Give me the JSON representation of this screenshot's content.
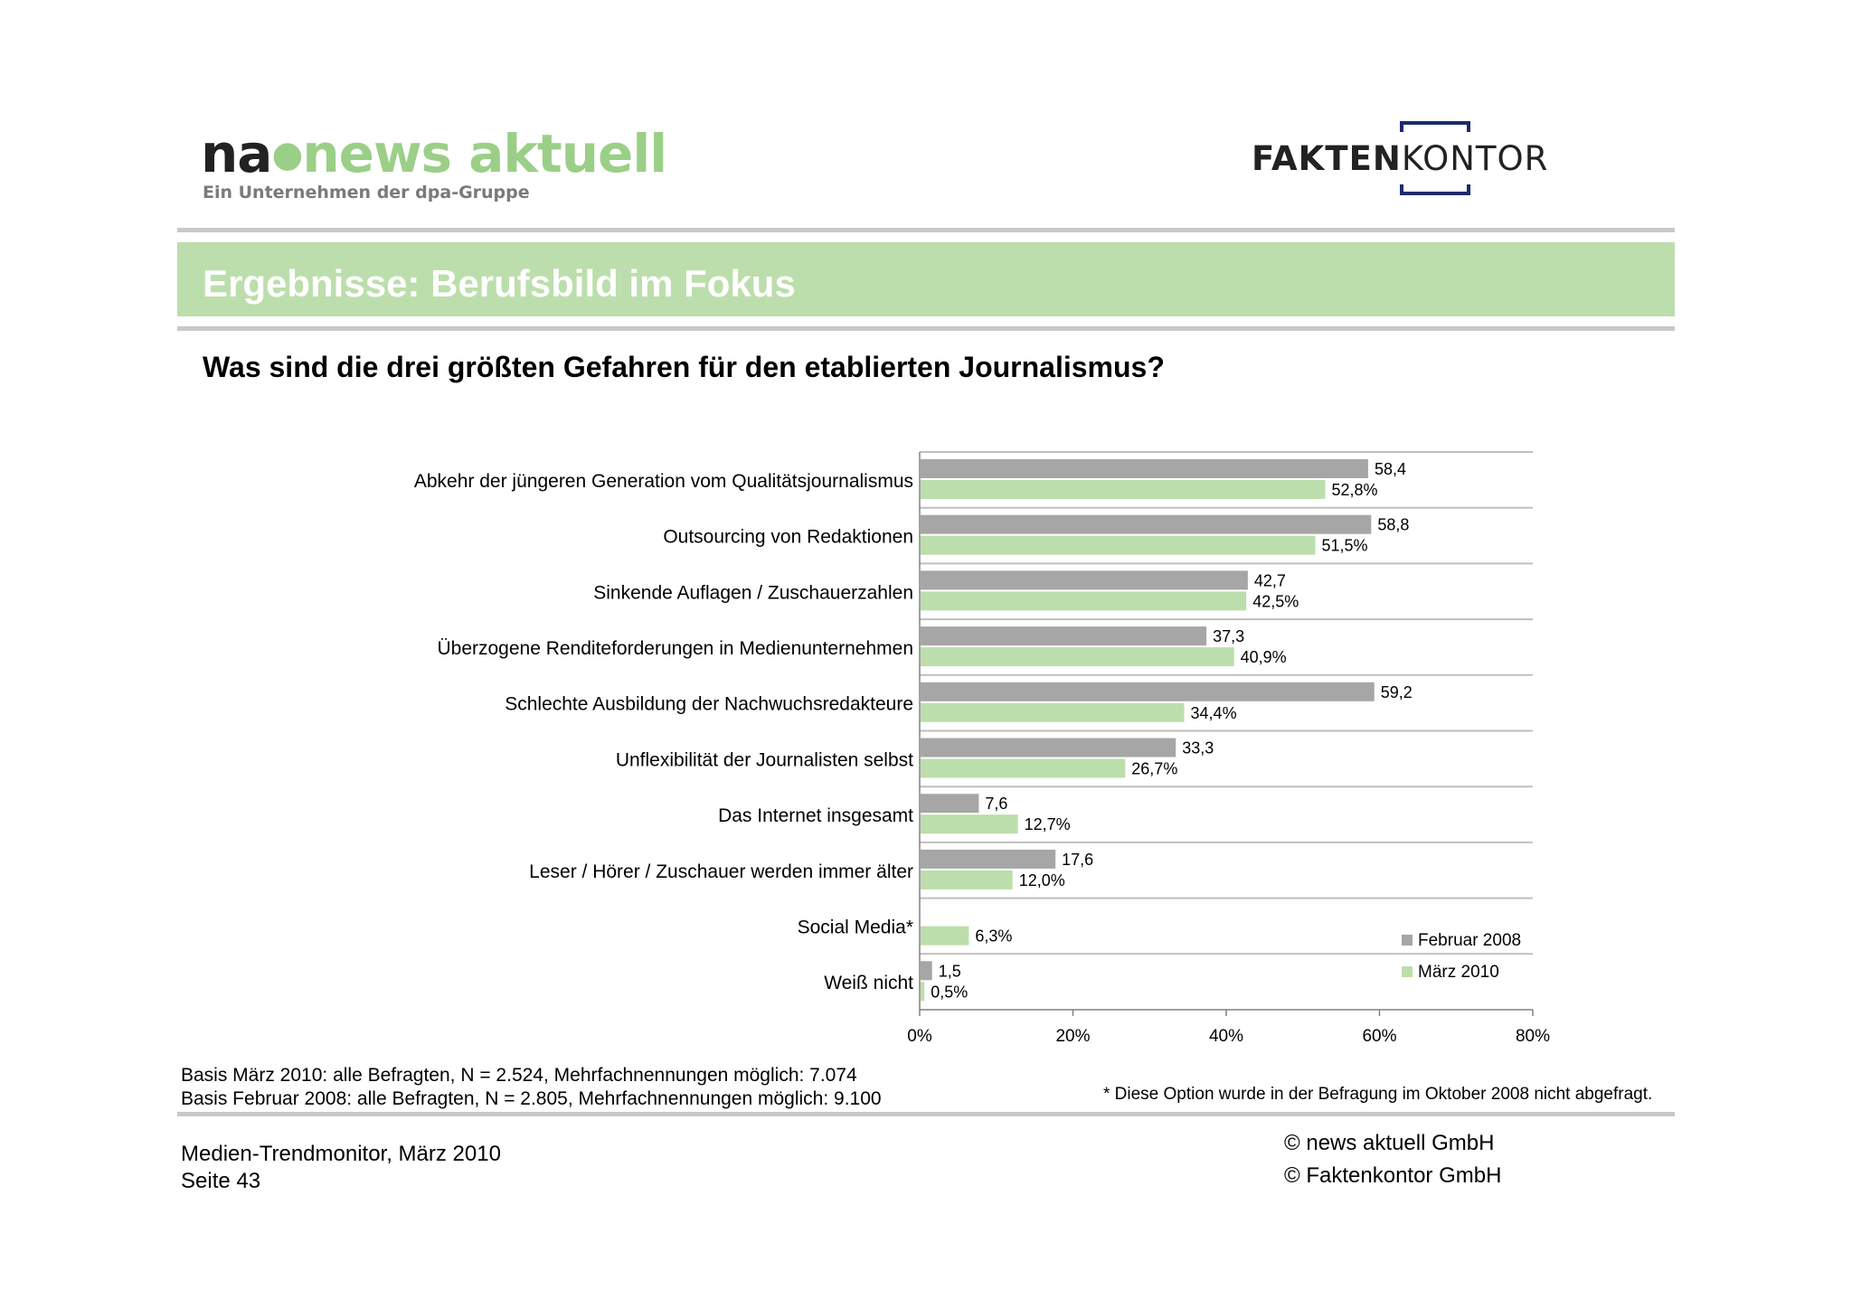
{
  "header": {
    "logo_na": "na",
    "logo_news": "news aktuell",
    "logo_sub": "Ein Unternehmen der dpa-Gruppe",
    "logo_fakten": "FAKTEN",
    "logo_kontor": "KONTOR",
    "brand_green": "#bcdeac",
    "brand_navy": "#1f2a6b"
  },
  "banner": {
    "title": "Ergebnisse: Berufsbild im Fokus"
  },
  "question": "Was sind die drei größten Gefahren für den etablierten Journalismus?",
  "chart_data": {
    "type": "bar",
    "orientation": "horizontal",
    "categories": [
      "Abkehr der jüngeren Generation vom Qualitätsjournalismus",
      "Outsourcing von Redaktionen",
      "Sinkende Auflagen / Zuschauerzahlen",
      "Überzogene Renditeforderungen in Medienunternehmen",
      "Schlechte Ausbildung der Nachwuchsredakteure",
      "Unflexibilität der Journalisten selbst",
      "Das Internet insgesamt",
      "Leser / Hörer / Zuschauer werden immer älter",
      "Social Media*",
      "Weiß nicht"
    ],
    "series": [
      {
        "name": "Februar 2008",
        "color": "#a6a6a6",
        "values": [
          58.4,
          58.8,
          42.7,
          37.3,
          59.2,
          33.3,
          7.6,
          17.6,
          null,
          1.5
        ],
        "labels": [
          "58,4",
          "58,8",
          "42,7",
          "37,3",
          "59,2",
          "33,3",
          "7,6",
          "17,6",
          "",
          "1,5"
        ]
      },
      {
        "name": "März 2010",
        "color": "#bcdeac",
        "values": [
          52.8,
          51.5,
          42.5,
          40.9,
          34.4,
          26.7,
          12.7,
          12.0,
          6.3,
          0.5
        ],
        "labels": [
          "52,8%",
          "51,5%",
          "42,5%",
          "40,9%",
          "34,4%",
          "26,7%",
          "12,7%",
          "12,0%",
          "6,3%",
          "0,5%"
        ]
      }
    ],
    "xlim": [
      0,
      80
    ],
    "xticks": [
      "0%",
      "20%",
      "40%",
      "60%",
      "80%"
    ],
    "legend_position": "bottom-right",
    "grid": "horizontal separators"
  },
  "footnotes": {
    "basis_2010": "Basis März 2010: alle Befragten, N = 2.524, Mehrfachnennungen möglich: 7.074",
    "basis_2008": "Basis Februar 2008: alle Befragten, N = 2.805, Mehrfachnennungen möglich: 9.100",
    "option_note": "* Diese Option wurde in der Befragung im Oktober 2008 nicht abgefragt."
  },
  "footer": {
    "source": "Medien-Trendmonitor, März 2010",
    "page": "Seite 43",
    "copyright1": "© news aktuell GmbH",
    "copyright2": "© Faktenkontor GmbH"
  }
}
